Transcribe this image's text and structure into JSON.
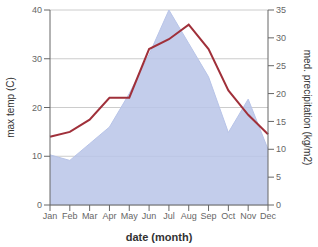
{
  "chart_data": {
    "type": "line",
    "categories": [
      "Jan",
      "Feb",
      "Mar",
      "Apr",
      "May",
      "Jun",
      "Jul",
      "Aug",
      "Sep",
      "Oct",
      "Nov",
      "Dec"
    ],
    "xlabel": "date (month)",
    "ylabel": "max temp (C)",
    "y2label": "med. precipitation (kg/m2)",
    "ylim": [
      0,
      40
    ],
    "yticks": [
      0,
      10,
      20,
      30,
      40
    ],
    "y2lim": [
      0,
      35
    ],
    "y2ticks": [
      0,
      5,
      10,
      15,
      20,
      25,
      30,
      35
    ],
    "grid": true,
    "series": [
      {
        "type": "area",
        "axis": "y2",
        "color": "#b8c4e8",
        "values": [
          9,
          8,
          11,
          14,
          20,
          27,
          35,
          29,
          23,
          13,
          19,
          10
        ]
      },
      {
        "type": "line",
        "color": "#a0303a",
        "values": [
          14.0,
          15.0,
          17.5,
          22.0,
          22.0,
          32.0,
          34.0,
          37.0,
          32.0,
          23.5,
          18.5,
          14.5
        ]
      }
    ]
  }
}
